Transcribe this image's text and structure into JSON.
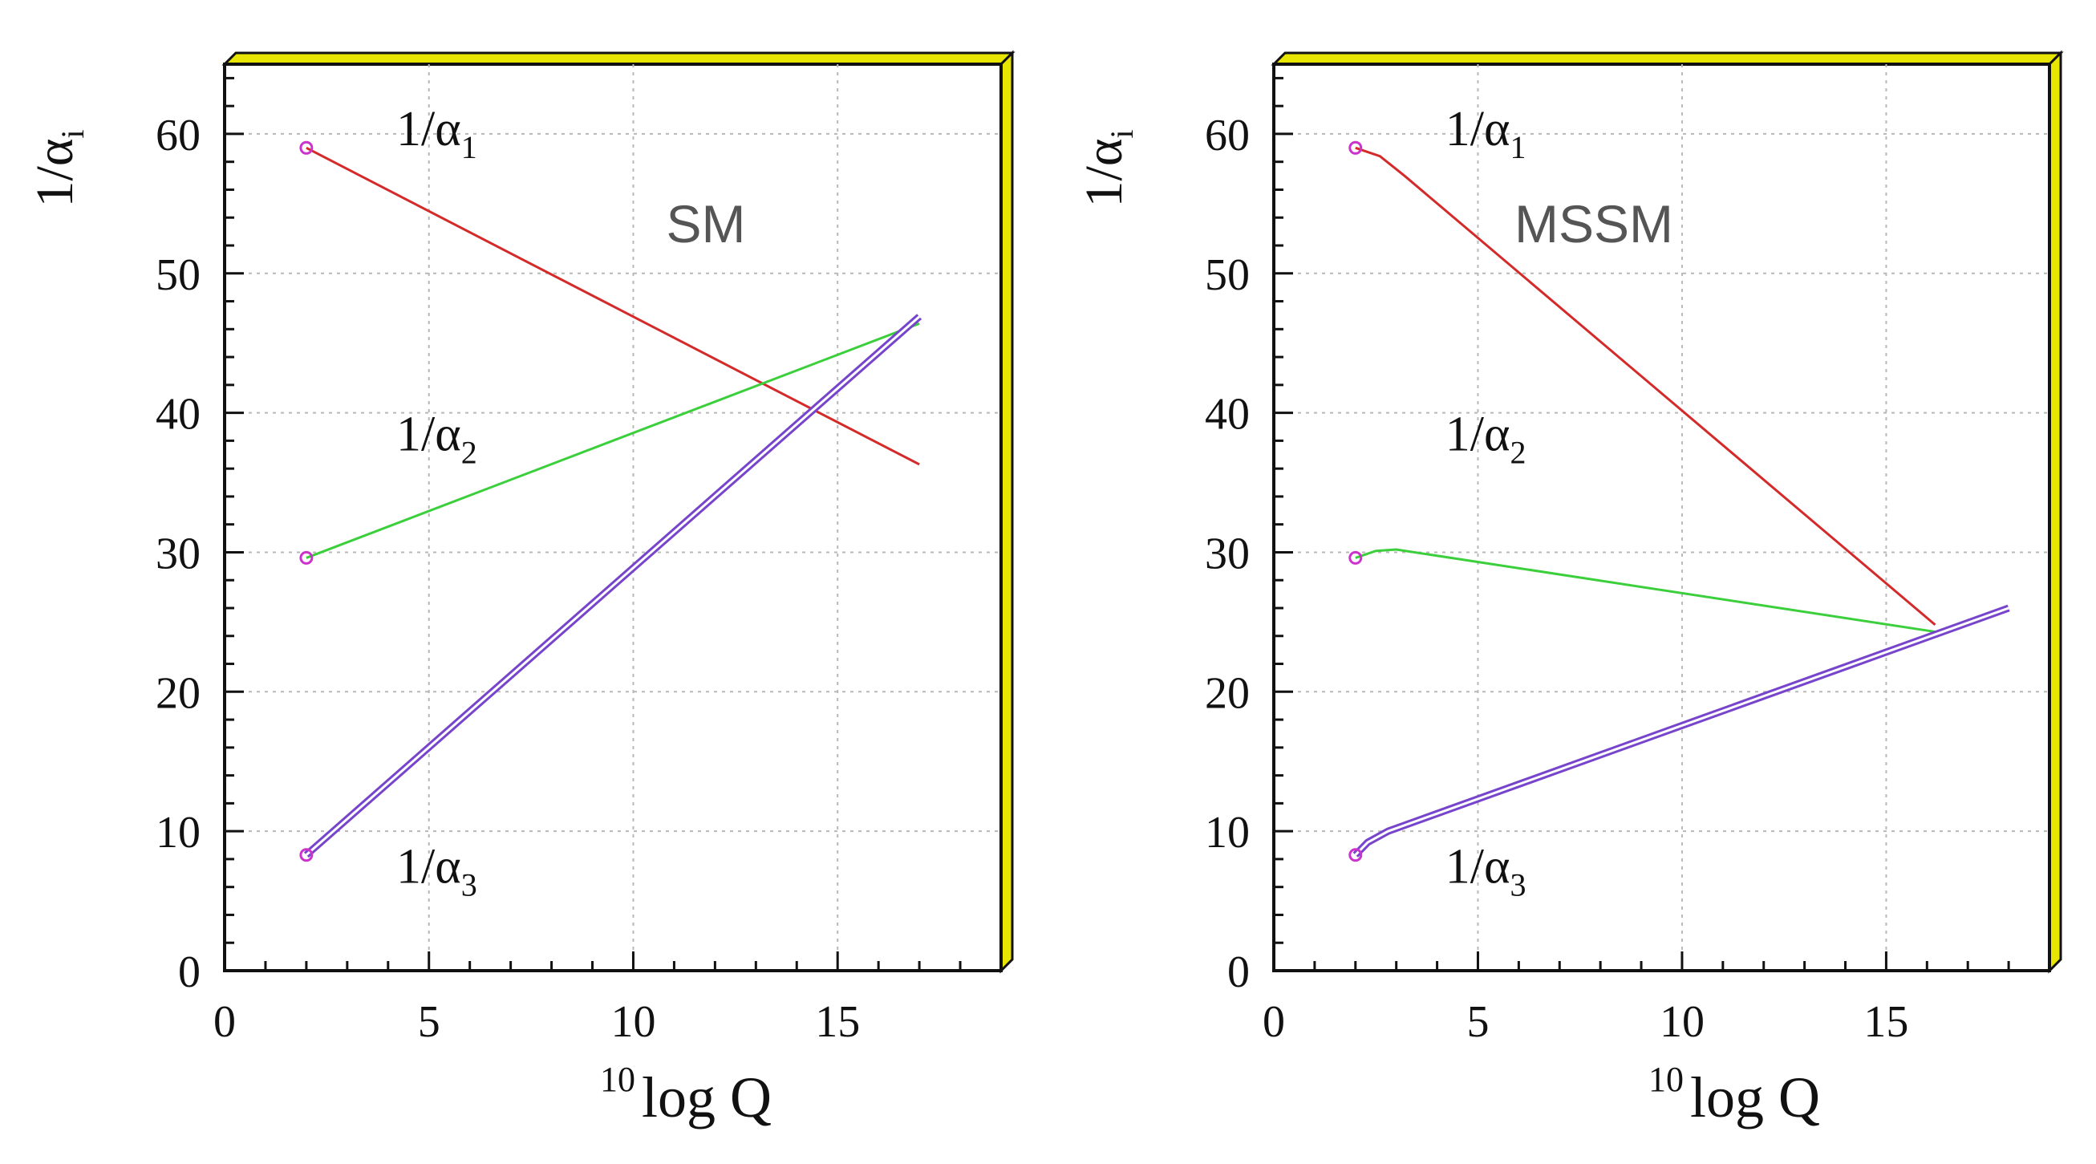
{
  "colors": {
    "frame_shadow": "#e8e600",
    "frame_shadow_edge": "#111111",
    "axis": "#111111",
    "marker": "#cc33cc",
    "title_text": "#555555"
  },
  "chart_data": [
    {
      "type": "line",
      "title": "SM",
      "xlabel_sup": "10",
      "xlabel": "log Q",
      "ylabel": "1/α",
      "ylabel_sub": "i",
      "xlim": [
        0,
        19
      ],
      "ylim": [
        0,
        65
      ],
      "xticks": [
        "0",
        "5",
        "10",
        "15"
      ],
      "yticks": [
        "0",
        "10",
        "20",
        "30",
        "40",
        "50",
        "60"
      ],
      "grid": true,
      "series": [
        {
          "name": "1/α",
          "sub": "1",
          "color": "#d42a2a",
          "double": false,
          "x": [
            2,
            17
          ],
          "y": [
            59,
            36.3
          ],
          "label_at": [
            4.2,
            59.2
          ]
        },
        {
          "name": "1/α",
          "sub": "2",
          "color": "#3ccf3c",
          "double": false,
          "x": [
            2,
            17
          ],
          "y": [
            29.6,
            46.4
          ],
          "label_at": [
            4.2,
            37.3
          ]
        },
        {
          "name": "1/α",
          "sub": "3",
          "color": "#7744cc",
          "double": true,
          "x": [
            2,
            17
          ],
          "y": [
            8.3,
            46.9
          ],
          "label_at": [
            4.2,
            6.3
          ]
        }
      ],
      "markers": [
        {
          "x": 2,
          "y": 59
        },
        {
          "x": 2,
          "y": 29.6
        },
        {
          "x": 2,
          "y": 8.3
        }
      ]
    },
    {
      "type": "line",
      "title": "MSSM",
      "xlabel_sup": "10",
      "xlabel": "log Q",
      "ylabel": "1/α",
      "ylabel_sub": "i",
      "xlim": [
        0,
        19
      ],
      "ylim": [
        0,
        65
      ],
      "xticks": [
        "0",
        "5",
        "10",
        "15"
      ],
      "yticks": [
        "0",
        "10",
        "20",
        "30",
        "40",
        "50",
        "60"
      ],
      "grid": true,
      "series": [
        {
          "name": "1/α",
          "sub": "1",
          "color": "#d42a2a",
          "double": false,
          "x": [
            2,
            2.6,
            3.2,
            16.2
          ],
          "y": [
            59,
            58.4,
            57,
            24.8
          ],
          "label_at": [
            4.2,
            59.2
          ]
        },
        {
          "name": "1/α",
          "sub": "2",
          "color": "#3ccf3c",
          "double": false,
          "x": [
            2,
            2.5,
            3,
            16.2
          ],
          "y": [
            29.6,
            30.1,
            30.2,
            24.3
          ],
          "label_at": [
            4.2,
            37.3
          ]
        },
        {
          "name": "1/α",
          "sub": "3",
          "color": "#7744cc",
          "double": true,
          "x": [
            2,
            2.3,
            2.8,
            18
          ],
          "y": [
            8.3,
            9.2,
            10,
            26
          ],
          "label_at": [
            4.2,
            6.3
          ]
        }
      ],
      "markers": [
        {
          "x": 2,
          "y": 59
        },
        {
          "x": 2,
          "y": 29.6
        },
        {
          "x": 2,
          "y": 8.3
        }
      ]
    }
  ]
}
